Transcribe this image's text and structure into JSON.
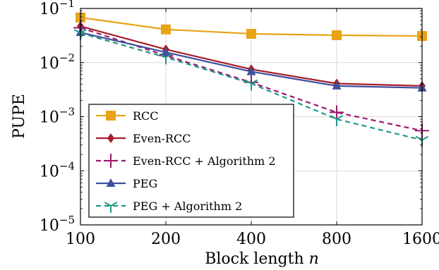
{
  "chart_data": {
    "type": "line",
    "xlabel": "Block length",
    "xlabel_var": "n",
    "ylabel": "PUPE",
    "x_scale": "log2",
    "y_scale": "log10",
    "x": [
      100,
      200,
      400,
      800,
      1600
    ],
    "x_tick_labels": [
      "100",
      "200",
      "400",
      "800",
      "1600"
    ],
    "ylim": [
      1e-05,
      0.1
    ],
    "y_ticks": [
      {
        "base": "10",
        "exp": "−1"
      },
      {
        "base": "10",
        "exp": "−2"
      },
      {
        "base": "10",
        "exp": "−3"
      },
      {
        "base": "10",
        "exp": "−4"
      },
      {
        "base": "10",
        "exp": "−5"
      }
    ],
    "y_tick_values": [
      0.1,
      0.01,
      0.001,
      0.0001,
      1e-05
    ],
    "grid": true,
    "legend_position": "bottom-left",
    "series": [
      {
        "name": "RCC",
        "color": "#e8a317",
        "dash": "solid",
        "marker": "square",
        "values": [
          0.068,
          0.041,
          0.034,
          0.032,
          0.031
        ]
      },
      {
        "name": "Even-RCC",
        "color": "#a31f2a",
        "dash": "solid",
        "marker": "diamond",
        "values": [
          0.047,
          0.0175,
          0.0075,
          0.0041,
          0.0037
        ]
      },
      {
        "name": "Even-RCC + Algorithm 2",
        "color": "#9c1a6e",
        "dash": "dashed",
        "marker": "plus",
        "values": [
          0.044,
          0.0135,
          0.0043,
          0.0012,
          0.00055
        ]
      },
      {
        "name": "PEG",
        "color": "#3f4f9e",
        "dash": "solid",
        "marker": "triangle",
        "values": [
          0.036,
          0.0155,
          0.0068,
          0.0037,
          0.0034
        ]
      },
      {
        "name": "PEG + Algorithm 2",
        "color": "#1f9a8a",
        "dash": "dashed",
        "marker": "tri-star",
        "values": [
          0.035,
          0.0125,
          0.0041,
          0.0009,
          0.00037
        ]
      }
    ]
  }
}
